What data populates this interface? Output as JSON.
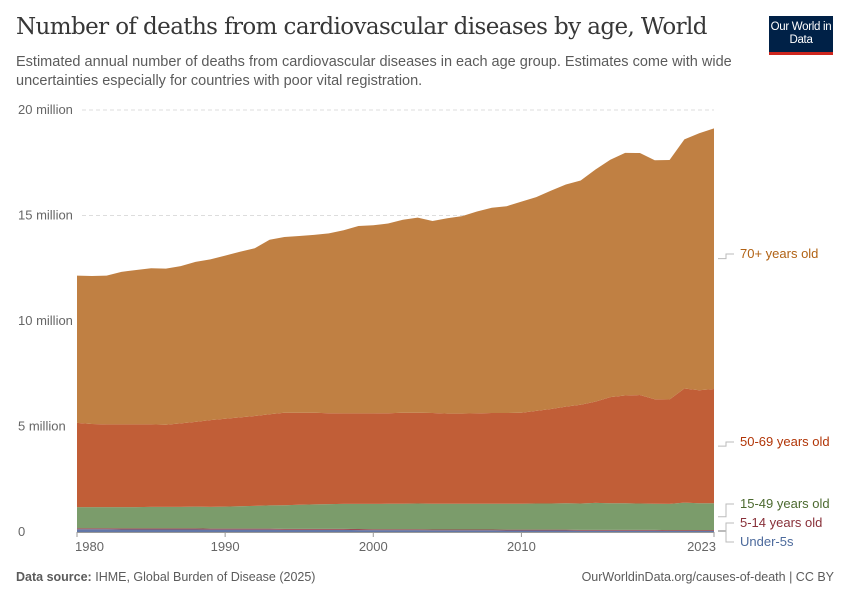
{
  "header": {
    "title": "Number of deaths from cardiovascular diseases by age, World",
    "subtitle": "Estimated annual number of deaths from cardiovascular diseases in each age group. Estimates come with wide uncertainties especially for countries with poor vital registration.",
    "logo_text": "Our World in Data"
  },
  "footer": {
    "source_label": "Data source:",
    "source_text": "IHME, Global Burden of Disease (2025)",
    "url_text": "OurWorldinData.org/causes-of-death | CC BY"
  },
  "chart_data": {
    "type": "area",
    "stacked": true,
    "title": "Number of deaths from cardiovascular diseases by age, World",
    "xlabel": "",
    "ylabel": "",
    "xlim": [
      1980,
      2023
    ],
    "ylim": [
      0,
      20000000
    ],
    "x_ticks": [
      1980,
      1990,
      2000,
      2010,
      2023
    ],
    "y_ticks": [
      {
        "value": 0,
        "label": "0"
      },
      {
        "value": 5000000,
        "label": "5 million"
      },
      {
        "value": 10000000,
        "label": "10 million"
      },
      {
        "value": 15000000,
        "label": "15 million"
      },
      {
        "value": 20000000,
        "label": "20 million"
      }
    ],
    "grid": "horizontal dashed",
    "legend": "right, inline labels",
    "x": [
      1980,
      1981,
      1982,
      1983,
      1984,
      1985,
      1986,
      1987,
      1988,
      1989,
      1990,
      1991,
      1992,
      1993,
      1994,
      1995,
      1996,
      1997,
      1998,
      1999,
      2000,
      2001,
      2002,
      2003,
      2004,
      2005,
      2006,
      2007,
      2008,
      2009,
      2010,
      2011,
      2012,
      2013,
      2014,
      2015,
      2016,
      2017,
      2018,
      2019,
      2020,
      2021,
      2022,
      2023
    ],
    "unit": "million deaths",
    "series": [
      {
        "name": "Under-5s",
        "color": "#6277a8",
        "label_color": "#4c6a9c",
        "values": [
          0.13,
          0.13,
          0.13,
          0.12,
          0.12,
          0.12,
          0.12,
          0.12,
          0.12,
          0.11,
          0.11,
          0.11,
          0.11,
          0.11,
          0.1,
          0.1,
          0.1,
          0.1,
          0.1,
          0.09,
          0.09,
          0.09,
          0.09,
          0.09,
          0.08,
          0.08,
          0.08,
          0.08,
          0.08,
          0.07,
          0.07,
          0.07,
          0.07,
          0.07,
          0.06,
          0.06,
          0.06,
          0.06,
          0.06,
          0.06,
          0.05,
          0.05,
          0.05,
          0.05
        ]
      },
      {
        "name": "5-14 years old",
        "color": "#9a4a52",
        "label_color": "#883039",
        "values": [
          0.05,
          0.05,
          0.05,
          0.05,
          0.05,
          0.05,
          0.05,
          0.05,
          0.05,
          0.05,
          0.05,
          0.05,
          0.05,
          0.05,
          0.05,
          0.05,
          0.05,
          0.05,
          0.05,
          0.05,
          0.04,
          0.04,
          0.04,
          0.04,
          0.04,
          0.04,
          0.04,
          0.04,
          0.04,
          0.04,
          0.04,
          0.04,
          0.04,
          0.04,
          0.04,
          0.04,
          0.04,
          0.04,
          0.04,
          0.04,
          0.04,
          0.04,
          0.04,
          0.04
        ]
      },
      {
        "name": "15-49 years old",
        "color": "#7b9c6b",
        "label_color": "#4c6a2f",
        "values": [
          1.0,
          1.0,
          1.0,
          1.01,
          1.01,
          1.02,
          1.02,
          1.02,
          1.03,
          1.03,
          1.04,
          1.06,
          1.08,
          1.1,
          1.12,
          1.14,
          1.16,
          1.17,
          1.18,
          1.19,
          1.2,
          1.21,
          1.21,
          1.22,
          1.22,
          1.22,
          1.22,
          1.22,
          1.22,
          1.23,
          1.23,
          1.24,
          1.24,
          1.25,
          1.25,
          1.28,
          1.26,
          1.26,
          1.25,
          1.24,
          1.24,
          1.3,
          1.27,
          1.27
        ]
      },
      {
        "name": "50-69 years old",
        "color": "#c15e37",
        "label_color": "#b13507",
        "values": [
          3.99,
          3.94,
          3.92,
          3.92,
          3.92,
          3.91,
          3.89,
          3.96,
          4.02,
          4.11,
          4.17,
          4.21,
          4.26,
          4.32,
          4.38,
          4.36,
          4.34,
          4.31,
          4.29,
          4.29,
          4.29,
          4.29,
          4.31,
          4.3,
          4.3,
          4.27,
          4.27,
          4.28,
          4.3,
          4.3,
          4.31,
          4.39,
          4.48,
          4.58,
          4.68,
          4.8,
          5.03,
          5.11,
          5.14,
          4.95,
          4.95,
          5.41,
          5.36,
          5.42
        ]
      },
      {
        "name": "70+ years old",
        "color": "#c08043",
        "label_color": "#b16214",
        "values": [
          6.98,
          7.01,
          7.05,
          7.23,
          7.32,
          7.4,
          7.4,
          7.45,
          7.58,
          7.62,
          7.73,
          7.85,
          7.95,
          8.27,
          8.33,
          8.38,
          8.43,
          8.52,
          8.68,
          8.88,
          8.92,
          8.99,
          9.15,
          9.25,
          9.1,
          9.26,
          9.36,
          9.57,
          9.73,
          9.8,
          10.01,
          10.13,
          10.35,
          10.53,
          10.63,
          11.0,
          11.25,
          11.5,
          11.47,
          11.33,
          11.35,
          11.81,
          12.18,
          12.35
        ]
      }
    ]
  }
}
